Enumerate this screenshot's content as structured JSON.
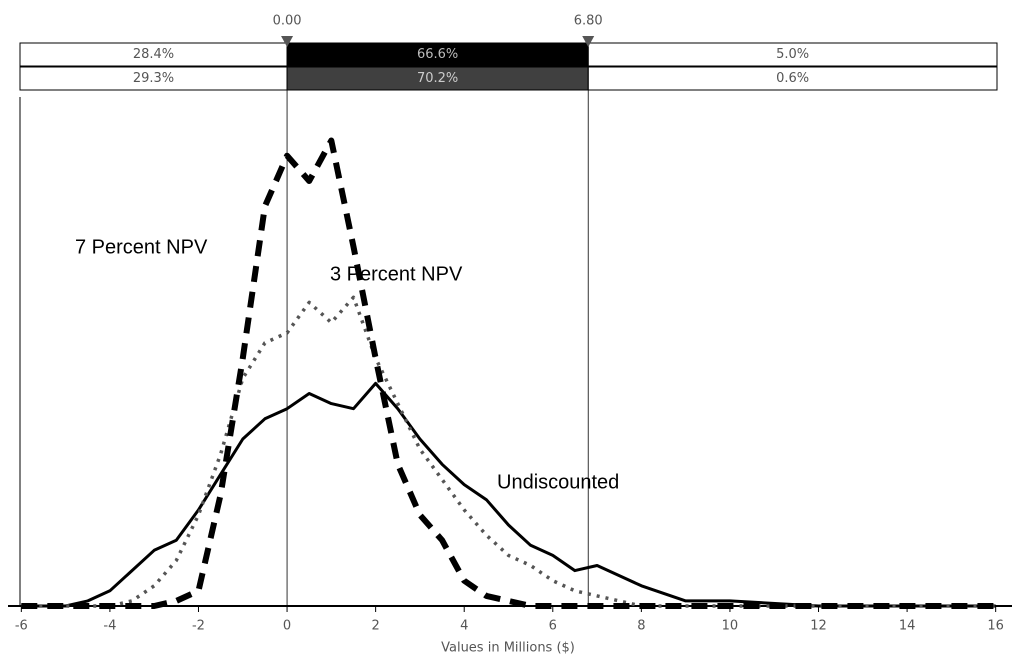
{
  "chart_data": {
    "type": "line",
    "x_label": "Values in Millions ($)",
    "x": [
      -6,
      -5,
      -4.5,
      -4,
      -3.5,
      -3,
      -2.5,
      -2,
      -1.5,
      -1,
      -0.5,
      0,
      0.5,
      1,
      1.5,
      2,
      2.5,
      3,
      3.5,
      4,
      4.5,
      5,
      5.5,
      6,
      6.5,
      7,
      7.5,
      8,
      9,
      10,
      12,
      14,
      16
    ],
    "series": [
      {
        "name": "Undiscounted",
        "color": "#000000",
        "dash": "solid",
        "values": [
          0,
          0,
          0.01,
          0.03,
          0.07,
          0.11,
          0.13,
          0.19,
          0.26,
          0.33,
          0.37,
          0.39,
          0.42,
          0.4,
          0.39,
          0.44,
          0.39,
          0.33,
          0.28,
          0.24,
          0.21,
          0.16,
          0.12,
          0.1,
          0.07,
          0.08,
          0.06,
          0.04,
          0.01,
          0.01,
          0,
          0,
          0
        ]
      },
      {
        "name": "3 Percent NPV",
        "color": "#555555",
        "dash": "dotted",
        "values": [
          0,
          0,
          0,
          0,
          0.01,
          0.04,
          0.09,
          0.18,
          0.3,
          0.45,
          0.52,
          0.54,
          0.6,
          0.56,
          0.61,
          0.49,
          0.4,
          0.31,
          0.25,
          0.19,
          0.14,
          0.1,
          0.08,
          0.05,
          0.03,
          0.02,
          0.01,
          0,
          0,
          0,
          0,
          0,
          0
        ]
      },
      {
        "name": "7 Percent NPV",
        "color": "#000000",
        "dash": "dashed",
        "values": [
          0,
          0,
          0,
          0,
          0,
          0,
          0.01,
          0.03,
          0.22,
          0.49,
          0.79,
          0.89,
          0.84,
          0.92,
          0.71,
          0.49,
          0.28,
          0.18,
          0.13,
          0.05,
          0.02,
          0.01,
          0,
          0,
          0,
          0,
          0,
          0,
          0,
          0,
          0,
          0,
          0
        ]
      }
    ],
    "xlim": [
      -6.03,
      16.03
    ],
    "xticks": [
      -6,
      -4,
      -2,
      0,
      2,
      4,
      6,
      8,
      10,
      12,
      14,
      16
    ],
    "ylim": [
      0,
      1
    ],
    "delimiters": [
      {
        "value": 0,
        "label": "0.00"
      },
      {
        "value": 6.8,
        "label": "6.80"
      }
    ],
    "bands": [
      {
        "values": [
          28.4,
          66.6,
          5.0
        ],
        "value_labels": [
          "28.4%",
          "66.6%",
          "5.0%"
        ]
      },
      {
        "values": [
          29.3,
          70.2,
          0.6
        ],
        "value_labels": [
          "29.3%",
          "70.2%",
          "0.6%"
        ]
      }
    ]
  }
}
